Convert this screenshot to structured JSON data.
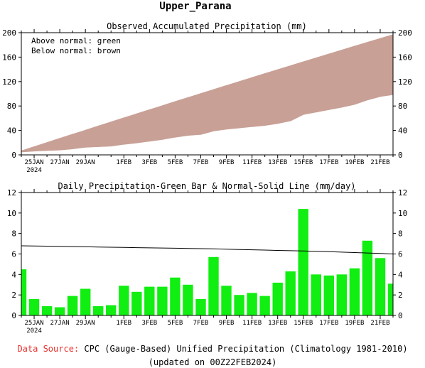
{
  "title": "Upper_Parana",
  "chart_data": [
    {
      "type": "area",
      "title": "Observed Accumulated Precipitation (mm)",
      "legend": [
        "Above normal: green",
        "Below normal: brown"
      ],
      "legend_position": "top-left",
      "x_tick_labels": [
        "25JAN",
        "27JAN",
        "29JAN",
        "1FEB",
        "3FEB",
        "5FEB",
        "7FEB",
        "9FEB",
        "11FEB",
        "13FEB",
        "15FEB",
        "17FEB",
        "19FEB",
        "21FEB"
      ],
      "x_sub_label": "2024",
      "ylim": [
        0,
        200
      ],
      "yticks": [
        0,
        40,
        80,
        120,
        160,
        200
      ],
      "dates": [
        "24JAN",
        "25JAN",
        "26JAN",
        "27JAN",
        "28JAN",
        "29JAN",
        "30JAN",
        "31JAN",
        "1FEB",
        "2FEB",
        "3FEB",
        "4FEB",
        "5FEB",
        "6FEB",
        "7FEB",
        "8FEB",
        "9FEB",
        "10FEB",
        "11FEB",
        "12FEB",
        "13FEB",
        "14FEB",
        "15FEB",
        "16FEB",
        "17FEB",
        "18FEB",
        "19FEB",
        "20FEB",
        "21FEB",
        "22FEB"
      ],
      "observed": [
        4.5,
        6.1,
        7.0,
        7.8,
        9.7,
        12.3,
        13.2,
        14.2,
        17.1,
        19.4,
        22.2,
        25.0,
        28.7,
        31.7,
        33.3,
        39.0,
        41.9,
        43.9,
        46.1,
        48.0,
        51.2,
        55.5,
        65.9,
        69.9,
        73.8,
        77.8,
        82.4,
        89.7,
        95.3,
        98.4
      ],
      "normal": [
        6.8,
        13.6,
        20.4,
        27.2,
        33.9,
        40.6,
        47.4,
        54.1,
        60.8,
        67.4,
        74.1,
        80.7,
        87.4,
        94.0,
        100.6,
        107.1,
        113.7,
        120.2,
        126.7,
        133.2,
        139.7,
        146.1,
        152.6,
        159.0,
        165.4,
        171.7,
        178.1,
        184.4,
        190.7,
        196.9
      ],
      "colors": {
        "above": "#00cc00",
        "below": "#c8a096"
      }
    },
    {
      "type": "bar",
      "title": "Daily Precipitation-Green Bar & Normal-Solid Line (mm/day)",
      "x_tick_labels": [
        "25JAN",
        "27JAN",
        "29JAN",
        "1FEB",
        "3FEB",
        "5FEB",
        "7FEB",
        "9FEB",
        "11FEB",
        "13FEB",
        "15FEB",
        "17FEB",
        "19FEB",
        "21FEB"
      ],
      "x_sub_label": "2024",
      "ylim": [
        0,
        12
      ],
      "yticks": [
        0,
        2,
        4,
        6,
        8,
        10,
        12
      ],
      "dates": [
        "24JAN",
        "25JAN",
        "26JAN",
        "27JAN",
        "28JAN",
        "29JAN",
        "30JAN",
        "31JAN",
        "1FEB",
        "2FEB",
        "3FEB",
        "4FEB",
        "5FEB",
        "6FEB",
        "7FEB",
        "8FEB",
        "9FEB",
        "10FEB",
        "11FEB",
        "12FEB",
        "13FEB",
        "14FEB",
        "15FEB",
        "16FEB",
        "17FEB",
        "18FEB",
        "19FEB",
        "20FEB",
        "21FEB",
        "22FEB"
      ],
      "values": [
        4.5,
        1.6,
        0.9,
        0.8,
        1.9,
        2.6,
        0.9,
        1.0,
        2.9,
        2.3,
        2.8,
        2.8,
        3.7,
        3.0,
        1.6,
        5.7,
        2.9,
        2.0,
        2.2,
        1.9,
        3.2,
        4.3,
        10.4,
        4.0,
        3.9,
        4.0,
        4.6,
        7.3,
        5.6,
        3.1
      ],
      "normal": [
        6.8,
        6.78,
        6.76,
        6.74,
        6.72,
        6.7,
        6.68,
        6.66,
        6.64,
        6.62,
        6.6,
        6.58,
        6.56,
        6.54,
        6.52,
        6.5,
        6.47,
        6.44,
        6.41,
        6.38,
        6.35,
        6.32,
        6.29,
        6.26,
        6.22,
        6.18,
        6.14,
        6.1,
        6.05,
        6.0
      ],
      "colors": {
        "bar": "#11ee11",
        "line": "#000000"
      }
    }
  ],
  "footer": {
    "source_label": "Data Source:",
    "source_text": "CPC (Gauge-Based) Unified Precipitation (Climatology 1981-2010)",
    "updated": "(updated on 00Z22FEB2024)"
  }
}
